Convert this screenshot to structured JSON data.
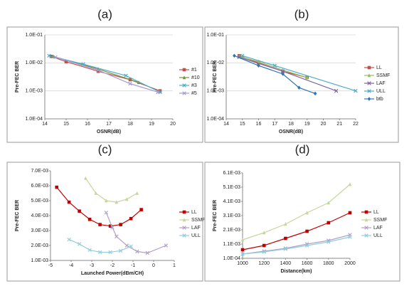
{
  "chart_data": [
    {
      "type": "line",
      "title": "(a)",
      "xlabel": "OSNR(dB)",
      "ylabel": "Pre-FEC BER",
      "ylog": true,
      "grid": true,
      "legend": "right",
      "xlim": [
        14,
        20
      ],
      "xticks": [
        14,
        15,
        16,
        17,
        18,
        19,
        20
      ],
      "ylim": [
        0.0001,
        0.1
      ],
      "yticks": [
        {
          "value": 0.0001,
          "label": "1.0E-04"
        },
        {
          "value": 0.001,
          "label": "1.0E-03"
        },
        {
          "value": 0.01,
          "label": "1.0E-02"
        },
        {
          "value": 0.1,
          "label": "1.0E-01"
        }
      ],
      "series": [
        {
          "name": "#1",
          "color": "#c0504d",
          "marker": "square",
          "x": [
            14.3,
            15,
            16.5,
            18,
            19.4
          ],
          "values": [
            0.017,
            0.011,
            0.005,
            0.0025,
            0.001
          ]
        },
        {
          "name": "#10",
          "color": "#77933c",
          "marker": "triangle",
          "x": [
            14.4,
            16.5,
            18.4
          ],
          "values": [
            0.017,
            0.006,
            0.002
          ]
        },
        {
          "name": "#3",
          "color": "#4bacc6",
          "marker": "x",
          "x": [
            14.2,
            15.8,
            17.8,
            19.4
          ],
          "values": [
            0.018,
            0.009,
            0.0035,
            0.0009
          ]
        },
        {
          "name": "#5",
          "color": "#a79bd4",
          "marker": "x",
          "x": [
            14.5,
            16.5,
            18,
            19.3
          ],
          "values": [
            0.016,
            0.0055,
            0.0018,
            0.0009
          ]
        }
      ]
    },
    {
      "type": "line",
      "title": "(b)",
      "xlabel": "OSNR(dB)",
      "ylabel": "Pre-FEC BER",
      "ylog": true,
      "grid": true,
      "legend": "right",
      "xlim": [
        14,
        22
      ],
      "xticks": [
        14,
        15,
        16,
        17,
        18,
        19,
        20,
        21,
        22
      ],
      "ylim": [
        0.0001,
        0.1
      ],
      "yticks": [
        {
          "value": 0.0001,
          "label": "1.0E-04"
        },
        {
          "value": 0.001,
          "label": "1.0E-03"
        },
        {
          "value": 0.01,
          "label": "1.0E-02"
        },
        {
          "value": 0.1,
          "label": "1.0E-01"
        }
      ],
      "series": [
        {
          "name": "LL",
          "color": "#c0504d",
          "marker": "square",
          "x": [
            14.8,
            16,
            17.5,
            19
          ],
          "values": [
            0.018,
            0.01,
            0.005,
            0.003
          ]
        },
        {
          "name": "SSMF",
          "color": "#9bbb59",
          "marker": "triangle",
          "x": [
            14.8,
            16,
            17.5,
            19
          ],
          "values": [
            0.017,
            0.011,
            0.0055,
            0.003
          ]
        },
        {
          "name": "LAF",
          "color": "#8064a2",
          "marker": "x",
          "x": [
            14.8,
            17.5,
            20.8
          ],
          "values": [
            0.016,
            0.005,
            0.001
          ]
        },
        {
          "name": "ULL",
          "color": "#4bacc6",
          "marker": "x",
          "x": [
            15,
            17,
            22
          ],
          "values": [
            0.018,
            0.008,
            0.001
          ]
        },
        {
          "name": "btb",
          "color": "#2e75b6",
          "marker": "diamond",
          "x": [
            14.5,
            16,
            17.5,
            18.5,
            19.5
          ],
          "values": [
            0.018,
            0.008,
            0.004,
            0.0013,
            0.0008
          ]
        }
      ]
    },
    {
      "type": "line",
      "title": "(c)",
      "xlabel": "Launched Power(dBm/CH)",
      "ylabel": "Pre-FEC BER",
      "ylog": false,
      "grid": false,
      "legend": "right",
      "xlim": [
        -5,
        1
      ],
      "xticks": [
        -5,
        -4,
        -3,
        -2,
        -1,
        0,
        1
      ],
      "ylim": [
        0.001,
        0.007
      ],
      "yticks": [
        {
          "value": 0.001,
          "label": "1.0E-03"
        },
        {
          "value": 0.002,
          "label": "2.0E-03"
        },
        {
          "value": 0.003,
          "label": "3.0E-03"
        },
        {
          "value": 0.004,
          "label": "4.0E-03"
        },
        {
          "value": 0.005,
          "label": "5.0E-03"
        },
        {
          "value": 0.006,
          "label": "6.0E-03"
        },
        {
          "value": 0.007,
          "label": "7.0E-03"
        }
      ],
      "series": [
        {
          "name": "LL",
          "color": "#c00000",
          "marker": "square",
          "x": [
            -4.7,
            -4.1,
            -3.6,
            -3.1,
            -2.6,
            -2.1,
            -1.6,
            -1.1,
            -0.6
          ],
          "values": [
            0.0059,
            0.0049,
            0.0043,
            0.00375,
            0.0034,
            0.0033,
            0.0034,
            0.0038,
            0.0044
          ]
        },
        {
          "name": "SSMF",
          "color": "#c4d79b",
          "marker": "triangle",
          "x": [
            -3.3,
            -2.8,
            -2.3,
            -1.8,
            -1.3,
            -0.8
          ],
          "values": [
            0.0065,
            0.0055,
            0.005,
            0.0049,
            0.0051,
            0.0055
          ]
        },
        {
          "name": "LAF",
          "color": "#b1a0c7",
          "marker": "x",
          "x": [
            -2.3,
            -2,
            -1.8,
            -1.3,
            -0.8,
            -0.3,
            0.6
          ],
          "values": [
            0.0042,
            0.0032,
            0.0026,
            0.002,
            0.0016,
            0.0015,
            0.002
          ]
        },
        {
          "name": "ULL",
          "color": "#92cddc",
          "marker": "x",
          "x": [
            -4.1,
            -3.6,
            -3.1,
            -2.6,
            -2.1,
            -1.6,
            -1.1
          ],
          "values": [
            0.0024,
            0.0021,
            0.0017,
            0.00155,
            0.00155,
            0.00165,
            0.00195
          ]
        }
      ]
    },
    {
      "type": "line",
      "title": "(d)",
      "xlabel": "Distance(km)",
      "ylabel": "Pre-FEC BER",
      "ylog": false,
      "grid": false,
      "legend": "right",
      "x": [
        1000,
        1200,
        1400,
        1600,
        1800,
        2000
      ],
      "xlim": [
        1000,
        2000
      ],
      "xticks": [
        1000,
        1200,
        1400,
        1600,
        1800,
        2000
      ],
      "ylim": [
        0.0001,
        0.0061
      ],
      "yticks": [
        {
          "value": 0.0001,
          "label": "1.0E-04"
        },
        {
          "value": 0.0011,
          "label": "1.1E-03"
        },
        {
          "value": 0.0021,
          "label": "2.1E-03"
        },
        {
          "value": 0.0031,
          "label": "3.1E-03"
        },
        {
          "value": 0.0041,
          "label": "4.1E-03"
        },
        {
          "value": 0.0051,
          "label": "5.1E-03"
        },
        {
          "value": 0.0061,
          "label": "6.1E-03"
        }
      ],
      "series": [
        {
          "name": "LL",
          "color": "#c00000",
          "marker": "square",
          "values": [
            0.0007,
            0.001,
            0.0015,
            0.002,
            0.0026,
            0.0033
          ]
        },
        {
          "name": "SSMF",
          "color": "#c4d79b",
          "marker": "triangle",
          "values": [
            0.0014,
            0.0019,
            0.0025,
            0.0033,
            0.004,
            0.0053
          ]
        },
        {
          "name": "LAF",
          "color": "#b1a0c7",
          "marker": "x",
          "values": [
            0.0004,
            0.0006,
            0.0008,
            0.0011,
            0.00135,
            0.00175
          ]
        },
        {
          "name": "ULL",
          "color": "#92cddc",
          "marker": "x",
          "values": [
            0.0004,
            0.00055,
            0.00075,
            0.001,
            0.00125,
            0.0016
          ]
        }
      ]
    }
  ]
}
